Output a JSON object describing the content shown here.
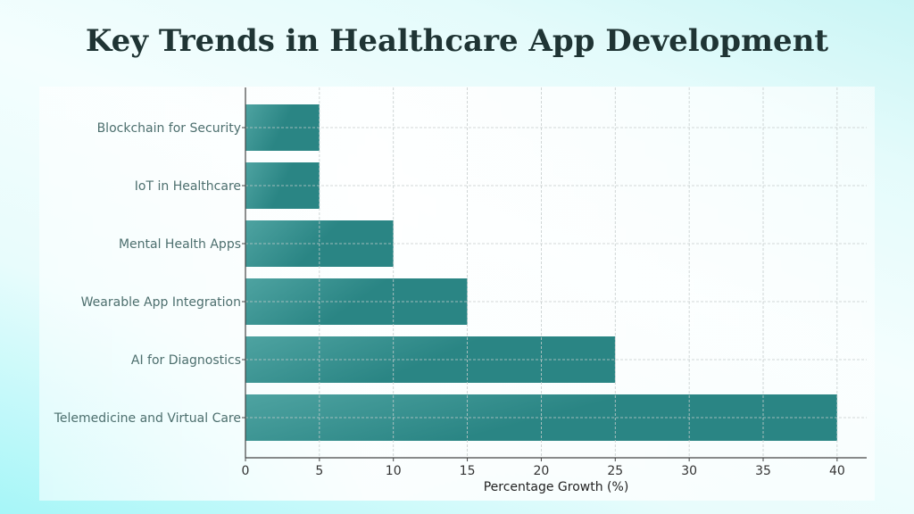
{
  "chart_data": {
    "type": "bar",
    "orientation": "horizontal",
    "title": "Key Trends in Healthcare App Development",
    "xlabel": "Percentage Growth (%)",
    "ylabel": "",
    "categories": [
      "Telemedicine and Virtual Care",
      "AI for Diagnostics",
      "Wearable App Integration",
      "Mental Health Apps",
      "IoT in Healthcare",
      "Blockchain for Security"
    ],
    "values": [
      40,
      25,
      15,
      10,
      5,
      5
    ],
    "xlim": [
      0,
      42
    ],
    "xticks": [
      "0",
      "5",
      "10",
      "15",
      "20",
      "25",
      "30",
      "35",
      "40"
    ],
    "grid": true,
    "bar_color": "#2a8584",
    "bar_color_light": "#4ea3a1"
  }
}
